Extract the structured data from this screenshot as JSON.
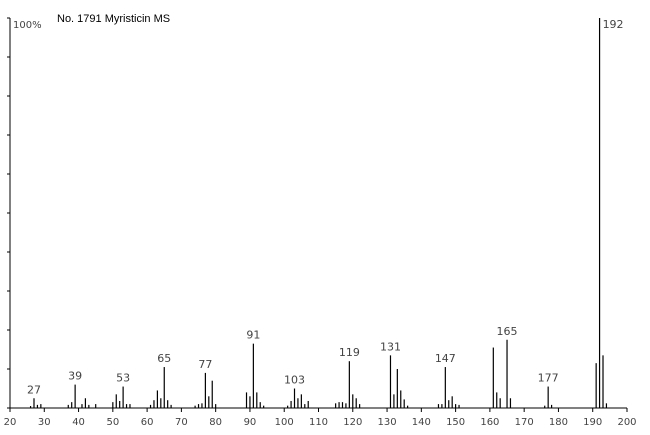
{
  "chart_data": {
    "type": "stem",
    "title": "No. 1791 Myristicin MS",
    "color": "#000000",
    "x": [
      26,
      27,
      28,
      29,
      37,
      38,
      39,
      41,
      42,
      43,
      45,
      50,
      51,
      52,
      53,
      54,
      55,
      61,
      62,
      63,
      64,
      65,
      66,
      67,
      74,
      75,
      76,
      77,
      78,
      79,
      80,
      89,
      90,
      91,
      92,
      93,
      94,
      101,
      102,
      103,
      104,
      105,
      106,
      107,
      115,
      116,
      117,
      118,
      119,
      120,
      121,
      122,
      131,
      132,
      133,
      134,
      135,
      136,
      145,
      146,
      147,
      148,
      149,
      150,
      151,
      161,
      162,
      163,
      165,
      166,
      176,
      177,
      178,
      191,
      192,
      193,
      194
    ],
    "values": [
      0.5,
      2.5,
      0.8,
      1,
      0.8,
      1.5,
      6,
      1,
      2.5,
      0.8,
      1,
      1.5,
      3.5,
      1.8,
      5.5,
      1,
      1,
      0.8,
      2,
      4.5,
      2.5,
      10.5,
      2,
      0.8,
      0.6,
      1,
      1.2,
      9,
      3,
      7,
      1,
      4,
      3,
      16.5,
      4,
      1.5,
      0.6,
      0.6,
      1.8,
      5,
      2.5,
      3.5,
      1,
      1.8,
      1.2,
      1.5,
      1.5,
      1.2,
      12,
      3.5,
      2.5,
      1,
      13.5,
      3.5,
      10,
      4.5,
      2.2,
      0.6,
      1,
      1,
      10.5,
      2,
      3,
      1,
      0.8,
      15.5,
      4,
      2.5,
      17.5,
      2.5,
      0.6,
      5.5,
      0.8,
      11.5,
      100,
      13.5,
      1.2
    ],
    "annotations": [
      27,
      39,
      53,
      65,
      77,
      91,
      103,
      119,
      131,
      147,
      165,
      177,
      192
    ],
    "xlim": [
      20,
      200
    ],
    "xticks": [
      20,
      30,
      40,
      50,
      60,
      70,
      80,
      90,
      100,
      110,
      120,
      130,
      140,
      150,
      160,
      170,
      180,
      190,
      200
    ],
    "ylim": [
      0,
      100
    ],
    "yticks": [
      {
        "value": 0,
        "label": null
      },
      {
        "value": 10,
        "label": null
      },
      {
        "value": 20,
        "label": null
      },
      {
        "value": 30,
        "label": null
      },
      {
        "value": 40,
        "label": null
      },
      {
        "value": 50,
        "label": null
      },
      {
        "value": 60,
        "label": null
      },
      {
        "value": 70,
        "label": null
      },
      {
        "value": 80,
        "label": null
      },
      {
        "value": 90,
        "label": null
      },
      {
        "value": 100,
        "label": "100%"
      }
    ]
  }
}
